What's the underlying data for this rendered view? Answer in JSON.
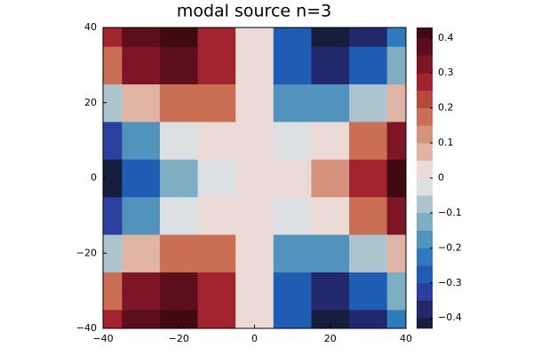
{
  "chart_data": {
    "type": "contour",
    "title": "modal source n=3",
    "x": [
      -40,
      -30,
      -20,
      -10,
      0,
      10,
      20,
      30,
      40
    ],
    "y": [
      -40,
      -30,
      -20,
      -10,
      0,
      10,
      20,
      30,
      40
    ],
    "z": [
      [
        0.25,
        0.39,
        0.42,
        0.28,
        0,
        -0.28,
        -0.42,
        -0.39,
        -0.25
      ],
      [
        0.15,
        0.3,
        0.37,
        0.26,
        0,
        -0.26,
        -0.37,
        -0.3,
        -0.15
      ],
      [
        -0.08,
        0.07,
        0.19,
        0.16,
        0,
        -0.16,
        -0.19,
        -0.07,
        0.08
      ],
      [
        -0.31,
        -0.18,
        -0.03,
        0.04,
        0,
        -0.04,
        0.03,
        0.18,
        0.31
      ],
      [
        -0.41,
        -0.29,
        -0.13,
        -0.02,
        0,
        0.02,
        0.13,
        0.29,
        0.41
      ],
      [
        -0.31,
        -0.18,
        -0.03,
        0.04,
        0,
        -0.04,
        0.03,
        0.18,
        0.31
      ],
      [
        -0.08,
        0.07,
        0.19,
        0.16,
        0,
        -0.16,
        -0.19,
        -0.07,
        0.08
      ],
      [
        0.15,
        0.3,
        0.37,
        0.26,
        0,
        -0.26,
        -0.37,
        -0.3,
        -0.15
      ],
      [
        0.25,
        0.39,
        0.42,
        0.28,
        0,
        -0.28,
        -0.42,
        -0.39,
        -0.25
      ]
    ],
    "levels": [
      -0.45,
      -0.4,
      -0.35,
      -0.3,
      -0.25,
      -0.2,
      -0.15,
      -0.1,
      -0.05,
      0,
      0.05,
      0.1,
      0.15,
      0.2,
      0.25,
      0.3,
      0.35,
      0.4,
      0.45
    ],
    "colors": [
      "#161c3c",
      "#22286c",
      "#2a3f9e",
      "#1f5db5",
      "#2f7abd",
      "#5193bd",
      "#7eaec2",
      "#abc4cd",
      "#dde0e3",
      "#ecdad6",
      "#dfb4a4",
      "#d6927a",
      "#ca6f53",
      "#b8483a",
      "#a0232f",
      "#7e1526",
      "#5c0e1c",
      "#3f0b10"
    ],
    "xlim": [
      -40,
      40
    ],
    "ylim": [
      -40,
      40
    ],
    "zlim": [
      -0.43,
      0.43
    ],
    "xticks": [
      {
        "value": -40,
        "label": "−40"
      },
      {
        "value": -20,
        "label": "−20"
      },
      0,
      20,
      40
    ],
    "yticks": [
      {
        "value": -40,
        "label": "−40"
      },
      {
        "value": -20,
        "label": "−20"
      },
      0,
      20,
      40
    ],
    "zticks": [
      {
        "value": -0.4,
        "label": "−0.4"
      },
      {
        "value": -0.3,
        "label": "−0.3"
      },
      {
        "value": -0.2,
        "label": "−0.2"
      },
      {
        "value": -0.1,
        "label": "−0.1"
      },
      0,
      0.1,
      0.2,
      0.3,
      0.4
    ]
  }
}
